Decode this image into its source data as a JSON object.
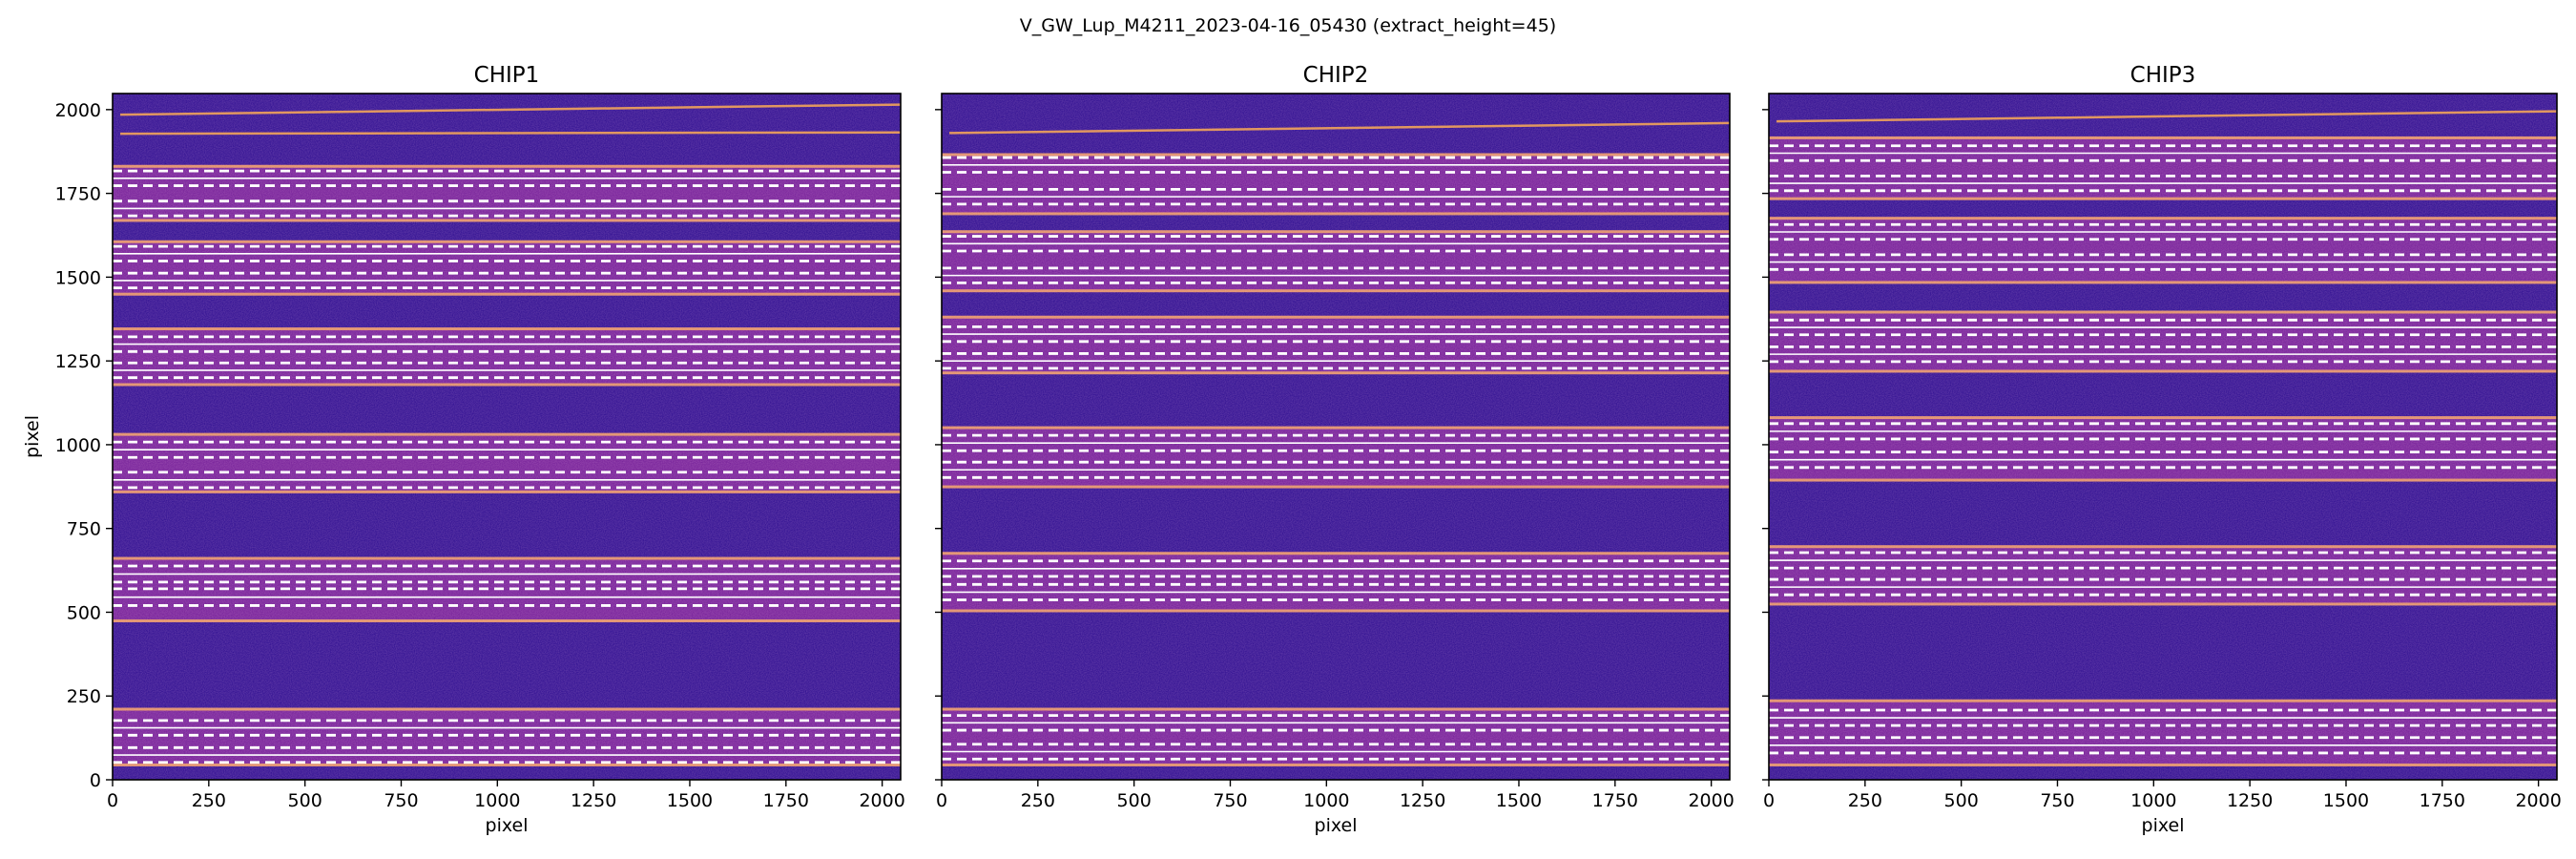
{
  "chart_data": {
    "type": "heatmap",
    "suptitle": "V_GW_Lup_M4211_2023-04-16_05430  (extract_height=45)",
    "xlabel": "pixel",
    "ylabel": "pixel",
    "xlim": [
      0,
      2048
    ],
    "ylim": [
      0,
      2048
    ],
    "xticks": [
      0,
      250,
      500,
      750,
      1000,
      1250,
      1500,
      1750,
      2000
    ],
    "yticks": [
      0,
      250,
      500,
      750,
      1000,
      1250,
      1500,
      1750,
      2000
    ],
    "colormap": "plasma",
    "colors": {
      "background": "#2a0b8f",
      "band": "#7a1f98",
      "band_edge": "#f2a45a",
      "trace_line": "#ffffff",
      "dashed_line": "#ffffff"
    },
    "panels": [
      {
        "title": "CHIP1",
        "show_ylabel": true,
        "bands": [
          [
            40,
            215
          ],
          [
            470,
            665
          ],
          [
            855,
            1035
          ],
          [
            1175,
            1350
          ],
          [
            1445,
            1610
          ],
          [
            1665,
            1835
          ]
        ],
        "tilted_lines": [
          [
            1928,
            1932
          ],
          [
            1985,
            2015
          ]
        ],
        "traces": [
          {
            "center": 74,
            "lower": 52,
            "upper": 96
          },
          {
            "center": 155,
            "lower": 133,
            "upper": 177
          },
          {
            "center": 545,
            "lower": 520,
            "upper": 570
          },
          {
            "center": 614,
            "lower": 590,
            "upper": 638
          },
          {
            "center": 895,
            "lower": 872,
            "upper": 918
          },
          {
            "center": 985,
            "lower": 962,
            "upper": 1008
          },
          {
            "center": 1222,
            "lower": 1200,
            "upper": 1244
          },
          {
            "center": 1300,
            "lower": 1278,
            "upper": 1322
          },
          {
            "center": 1490,
            "lower": 1468,
            "upper": 1512
          },
          {
            "center": 1570,
            "lower": 1548,
            "upper": 1592
          },
          {
            "center": 1705,
            "lower": 1683,
            "upper": 1727
          },
          {
            "center": 1795,
            "lower": 1773,
            "upper": 1817
          }
        ]
      },
      {
        "title": "CHIP2",
        "show_ylabel": false,
        "bands": [
          [
            40,
            215
          ],
          [
            500,
            680
          ],
          [
            870,
            1055
          ],
          [
            1210,
            1385
          ],
          [
            1455,
            1640
          ],
          [
            1685,
            1870
          ]
        ],
        "tilted_lines": [
          [
            1930,
            1960
          ]
        ],
        "traces": [
          {
            "center": 84,
            "lower": 62,
            "upper": 106
          },
          {
            "center": 170,
            "lower": 148,
            "upper": 192
          },
          {
            "center": 560,
            "lower": 537,
            "upper": 583
          },
          {
            "center": 630,
            "lower": 607,
            "upper": 653
          },
          {
            "center": 925,
            "lower": 902,
            "upper": 948
          },
          {
            "center": 1005,
            "lower": 982,
            "upper": 1028
          },
          {
            "center": 1250,
            "lower": 1228,
            "upper": 1272
          },
          {
            "center": 1330,
            "lower": 1308,
            "upper": 1352
          },
          {
            "center": 1505,
            "lower": 1483,
            "upper": 1527
          },
          {
            "center": 1600,
            "lower": 1578,
            "upper": 1622
          },
          {
            "center": 1740,
            "lower": 1718,
            "upper": 1762
          },
          {
            "center": 1835,
            "lower": 1813,
            "upper": 1857
          }
        ]
      },
      {
        "title": "CHIP3",
        "show_ylabel": false,
        "bands": [
          [
            40,
            240
          ],
          [
            520,
            700
          ],
          [
            890,
            1085
          ],
          [
            1215,
            1400
          ],
          [
            1480,
            1680
          ],
          [
            1730,
            1920
          ]
        ],
        "tilted_lines": [
          [
            1965,
            1995
          ]
        ],
        "traces": [
          {
            "center": 103,
            "lower": 80,
            "upper": 126
          },
          {
            "center": 185,
            "lower": 162,
            "upper": 208
          },
          {
            "center": 575,
            "lower": 552,
            "upper": 598
          },
          {
            "center": 655,
            "lower": 632,
            "upper": 678
          },
          {
            "center": 955,
            "lower": 932,
            "upper": 978
          },
          {
            "center": 1040,
            "lower": 1017,
            "upper": 1063
          },
          {
            "center": 1270,
            "lower": 1248,
            "upper": 1292
          },
          {
            "center": 1350,
            "lower": 1328,
            "upper": 1372
          },
          {
            "center": 1545,
            "lower": 1523,
            "upper": 1567
          },
          {
            "center": 1635,
            "lower": 1613,
            "upper": 1657
          },
          {
            "center": 1780,
            "lower": 1758,
            "upper": 1802
          },
          {
            "center": 1870,
            "lower": 1848,
            "upper": 1892
          }
        ]
      }
    ]
  }
}
